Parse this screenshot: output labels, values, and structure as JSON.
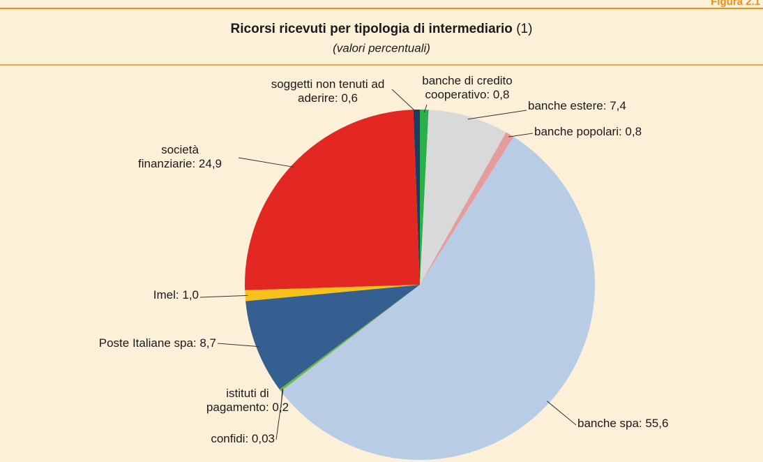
{
  "header_label": "Figura 2.1",
  "chart_data": {
    "type": "pie",
    "title": "Ricorsi ricevuti per tipologia di intermediario",
    "title_note": "(1)",
    "subtitle": "(valori percentuali)",
    "labels": [
      [
        "banche di credito",
        "cooperativo: 0,8"
      ],
      [
        "banche estere: 7,4"
      ],
      [
        "banche popolari: 0,8"
      ],
      [
        "banche spa: 55,6"
      ],
      [
        "confidi: 0,03"
      ],
      [
        "istituti di",
        "pagamento: 0,2"
      ],
      [
        "Poste Italiane spa: 8,7"
      ],
      [
        "Imel: 1,0"
      ],
      [
        "società",
        "finanziarie: 24,9"
      ],
      [
        "soggetti non tenuti ad",
        "aderire: 0,6"
      ]
    ],
    "values": [
      0.8,
      7.4,
      0.8,
      55.6,
      0.03,
      0.2,
      8.7,
      1.0,
      24.9,
      0.6
    ],
    "colors": [
      "#2bb04a",
      "#d9d9d9",
      "#e59c9c",
      "#b9cce5",
      "#8cc63f",
      "#6fb442",
      "#365f91",
      "#f6c11b",
      "#e32722",
      "#1f3b60"
    ]
  }
}
